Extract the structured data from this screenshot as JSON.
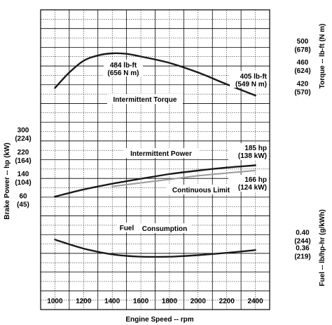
{
  "chart_data": {
    "type": "line",
    "title": "",
    "xlabel": "Engine Speed -- rpm",
    "xlim": [
      900,
      2500
    ],
    "x_ticks": [
      "1000",
      "1200",
      "1400",
      "1600",
      "1800",
      "2000",
      "2200",
      "2400"
    ],
    "grid": true,
    "panels": {
      "torque": {
        "ylabel": "Torque -- lb-ft (N m)",
        "axis_side": "right",
        "ylim": [
          380,
          530
        ],
        "ticks": [
          {
            "value": 500,
            "label": "500",
            "metric": "(678)"
          },
          {
            "value": 460,
            "label": "460",
            "metric": "(624)"
          },
          {
            "value": 420,
            "label": "420",
            "metric": "(570)"
          }
        ]
      },
      "power": {
        "ylabel": "Brake Power -- hp (kW)",
        "axis_side": "left",
        "ylim": [
          20,
          340
        ],
        "ticks": [
          {
            "value": 300,
            "label": "300",
            "metric": "(224)"
          },
          {
            "value": 220,
            "label": "220",
            "metric": "(164)"
          },
          {
            "value": 140,
            "label": "140",
            "metric": "(104)"
          },
          {
            "value": 60,
            "label": "60",
            "metric": "(45)"
          }
        ]
      },
      "fuel": {
        "ylabel": "Fuel -- lb/hp-hr (g/kWh)",
        "axis_side": "right",
        "ylim": [
          0.33,
          0.43
        ],
        "ticks": [
          {
            "value": 0.4,
            "label": "0.40",
            "metric": "(244)"
          },
          {
            "value": 0.36,
            "label": "0.36",
            "metric": "(219)"
          }
        ]
      }
    },
    "series": [
      {
        "name": "Intermittent Torque",
        "panel": "torque",
        "color": "#1a1a1a",
        "x": [
          1000,
          1100,
          1200,
          1300,
          1400,
          1500,
          1600,
          1800,
          2000,
          2200,
          2400
        ],
        "y": [
          419,
          448,
          470,
          480,
          484,
          483,
          478,
          466,
          448,
          426,
          405
        ]
      },
      {
        "name": "Intermittent Power",
        "panel": "power",
        "color": "#1a1a1a",
        "x": [
          1000,
          1200,
          1400,
          1600,
          1800,
          2000,
          2200,
          2400
        ],
        "y": [
          71,
          97,
          118,
          136,
          153,
          166,
          177,
          185
        ]
      },
      {
        "name": "Continuous Limit",
        "panel": "power",
        "color": "#9a9a9a",
        "x": [
          1400,
          1600,
          1800,
          2000,
          2200,
          2400
        ],
        "y": [
          108,
          121,
          134,
          147,
          157,
          166
        ]
      },
      {
        "name": "Fuel Consumption",
        "panel": "fuel",
        "color": "#1a1a1a",
        "x": [
          1000,
          1200,
          1400,
          1600,
          1800,
          2000,
          2200,
          2400
        ],
        "y": [
          0.391,
          0.368,
          0.353,
          0.347,
          0.347,
          0.351,
          0.357,
          0.364
        ]
      }
    ],
    "annotations": {
      "torque_peak": {
        "line1": "484 lb-ft",
        "line2": "(656 N m)"
      },
      "torque_end": {
        "line1": "405 lb-ft",
        "line2": "(549 N m)"
      },
      "torque_label": "Intermittent Torque",
      "power_end": {
        "line1": "185 hp",
        "line2": "(138 kW)"
      },
      "power_label": "Intermittent Power",
      "cont_end": {
        "line1": "166 hp",
        "line2": "(124 kW)"
      },
      "cont_label": "Continuous Limit",
      "fuel_label1": "Fuel",
      "fuel_label2": "Consumption"
    }
  }
}
